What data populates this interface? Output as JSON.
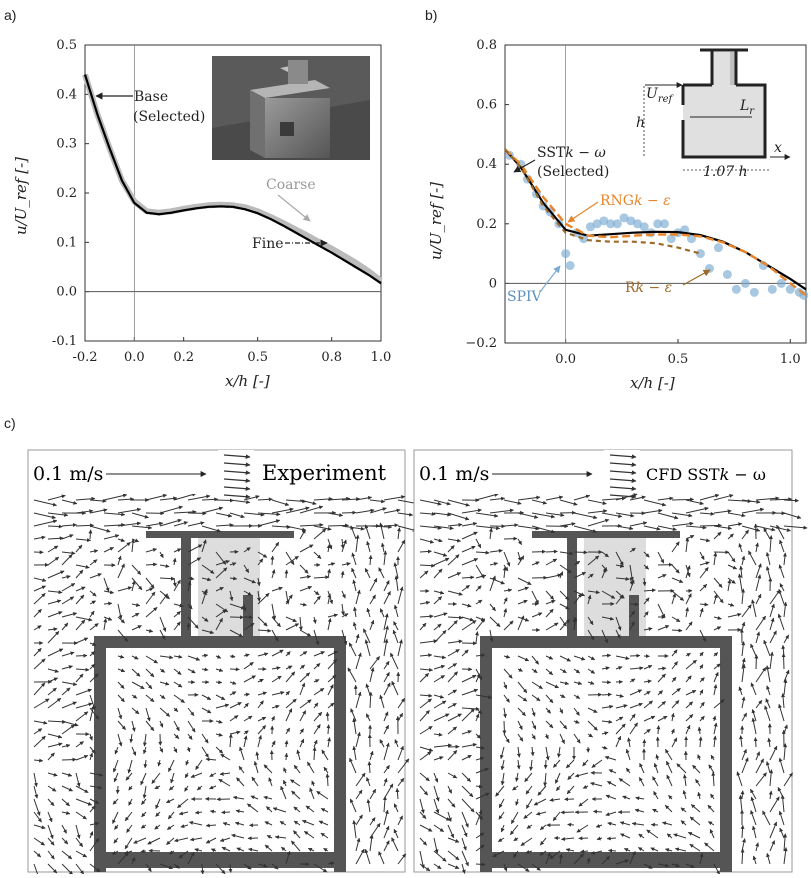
{
  "chart_data": [
    {
      "panel": "a)",
      "type": "line",
      "xlabel": "x/h [-]",
      "ylabel": "u/U_ref [-]",
      "xlim": [
        -0.2,
        1.0
      ],
      "ylim": [
        -0.1,
        0.5
      ],
      "xticks": [
        "-0.2",
        "0.0",
        "0.2",
        "0.5",
        "0.8",
        "1.0"
      ],
      "yticks": [
        "-0.1",
        "0.0",
        "0.1",
        "0.2",
        "0.3",
        "0.4",
        "0.5"
      ],
      "x": [
        -0.2,
        -0.15,
        -0.1,
        -0.05,
        0.0,
        0.05,
        0.1,
        0.15,
        0.2,
        0.25,
        0.3,
        0.35,
        0.4,
        0.45,
        0.5,
        0.55,
        0.6,
        0.65,
        0.7,
        0.75,
        0.8,
        0.85,
        0.9,
        0.95,
        1.0
      ],
      "series": [
        {
          "name": "Coarse",
          "color": "#bbbbbb",
          "values": [
            0.44,
            0.36,
            0.29,
            0.225,
            0.183,
            0.163,
            0.16,
            0.163,
            0.168,
            0.172,
            0.175,
            0.176,
            0.175,
            0.171,
            0.163,
            0.152,
            0.14,
            0.127,
            0.114,
            0.1,
            0.087,
            0.073,
            0.058,
            0.041,
            0.022
          ]
        },
        {
          "name": "Base (Selected)",
          "color": "#000000",
          "values": [
            0.44,
            0.36,
            0.29,
            0.225,
            0.18,
            0.16,
            0.157,
            0.16,
            0.165,
            0.169,
            0.172,
            0.173,
            0.172,
            0.167,
            0.159,
            0.148,
            0.135,
            0.121,
            0.107,
            0.093,
            0.079,
            0.064,
            0.049,
            0.034,
            0.017
          ]
        },
        {
          "name": "Fine",
          "color": "#000000",
          "values": [
            0.44,
            0.36,
            0.29,
            0.225,
            0.179,
            0.159,
            0.156,
            0.159,
            0.164,
            0.168,
            0.171,
            0.172,
            0.171,
            0.166,
            0.158,
            0.147,
            0.134,
            0.12,
            0.106,
            0.092,
            0.078,
            0.063,
            0.048,
            0.033,
            0.016
          ]
        }
      ],
      "annotations": {
        "base": "Base",
        "selected": "(Selected)",
        "coarse": "Coarse",
        "fine": "Fine"
      }
    },
    {
      "panel": "b)",
      "type": "line",
      "xlabel": "x/h [-]",
      "ylabel": "u/U_ref [-]",
      "xlim": [
        -0.27,
        1.07
      ],
      "ylim": [
        -0.2,
        0.8
      ],
      "xticks": [
        "0.0",
        "0.5",
        "1.0"
      ],
      "yticks": [
        "−0.2",
        "0",
        "0.2",
        "0.4",
        "0.6",
        "0.8"
      ],
      "x": [
        -0.27,
        -0.2,
        -0.1,
        0.0,
        0.1,
        0.2,
        0.3,
        0.4,
        0.5,
        0.6,
        0.7,
        0.8,
        0.9,
        1.0,
        1.07
      ],
      "series": [
        {
          "name": "SST k−ω (Selected)",
          "color": "#000000",
          "values": [
            0.45,
            0.39,
            0.27,
            0.18,
            0.16,
            0.165,
            0.17,
            0.173,
            0.172,
            0.162,
            0.14,
            0.105,
            0.06,
            0.015,
            -0.02
          ]
        },
        {
          "name": "RNG k−ε",
          "color": "#e8852a",
          "values": [
            0.45,
            0.4,
            0.29,
            0.2,
            0.16,
            0.155,
            0.16,
            0.164,
            0.164,
            0.158,
            0.138,
            0.105,
            0.06,
            0.0,
            -0.04
          ]
        },
        {
          "name": "R k−ε",
          "color": "#9c6a2a",
          "values": [
            0.45,
            0.39,
            0.26,
            0.17,
            0.145,
            0.14,
            0.14,
            0.135,
            0.12,
            0.1,
            null,
            null,
            null,
            null,
            null
          ]
        }
      ],
      "spiv": {
        "name": "SPIV",
        "color": "#7aaad2",
        "x": [
          -0.25,
          -0.2,
          -0.17,
          -0.13,
          -0.1,
          -0.07,
          -0.03,
          0.0,
          0.02,
          0.05,
          0.08,
          0.11,
          0.14,
          0.17,
          0.2,
          0.23,
          0.26,
          0.29,
          0.32,
          0.35,
          0.38,
          0.41,
          0.44,
          0.47,
          0.5,
          0.53,
          0.56,
          0.6,
          0.64,
          0.68,
          0.72,
          0.76,
          0.8,
          0.84,
          0.88,
          0.92,
          0.96,
          1.0,
          1.04,
          1.06
        ],
        "y": [
          0.43,
          0.4,
          0.35,
          0.3,
          0.26,
          0.24,
          0.2,
          0.1,
          0.06,
          0.17,
          0.15,
          0.19,
          0.2,
          0.21,
          0.2,
          0.2,
          0.22,
          0.21,
          0.2,
          0.19,
          0.17,
          0.2,
          0.2,
          0.15,
          0.17,
          0.18,
          0.15,
          0.1,
          0.05,
          0.12,
          0.03,
          -0.02,
          0.0,
          -0.03,
          0.06,
          -0.02,
          0.0,
          -0.02,
          -0.03,
          -0.04
        ]
      },
      "annotations": {
        "sst_1": "SST",
        "sst_2": "(Selected)",
        "rng": "RNG",
        "rk": "R",
        "spiv": "SPIV",
        "k": "k",
        "omega": "ω",
        "eps": "ε",
        "minus": " − ",
        "inset_uref": "U",
        "inset_ref": "ref",
        "inset_h": "h",
        "inset_lr": "L",
        "inset_r": "r",
        "inset_x": "x",
        "inset_107": "1.07 h"
      }
    }
  ],
  "panel_c": {
    "label": "c)",
    "left": {
      "scale": "0.1 m/s",
      "title": "Experiment"
    },
    "right": {
      "scale": "0.1 m/s",
      "title_prefix": "CFD SST",
      "title_k": "k",
      "title_rest": " − ω"
    }
  },
  "colors": {
    "base": "#000000",
    "coarse": "#bbbbbb",
    "rng": "#e8852a",
    "rk": "#9c6a2a",
    "spiv": "#7aaad2",
    "wall": "#555555",
    "vent": "#dddddd",
    "arrow": "#333333"
  }
}
